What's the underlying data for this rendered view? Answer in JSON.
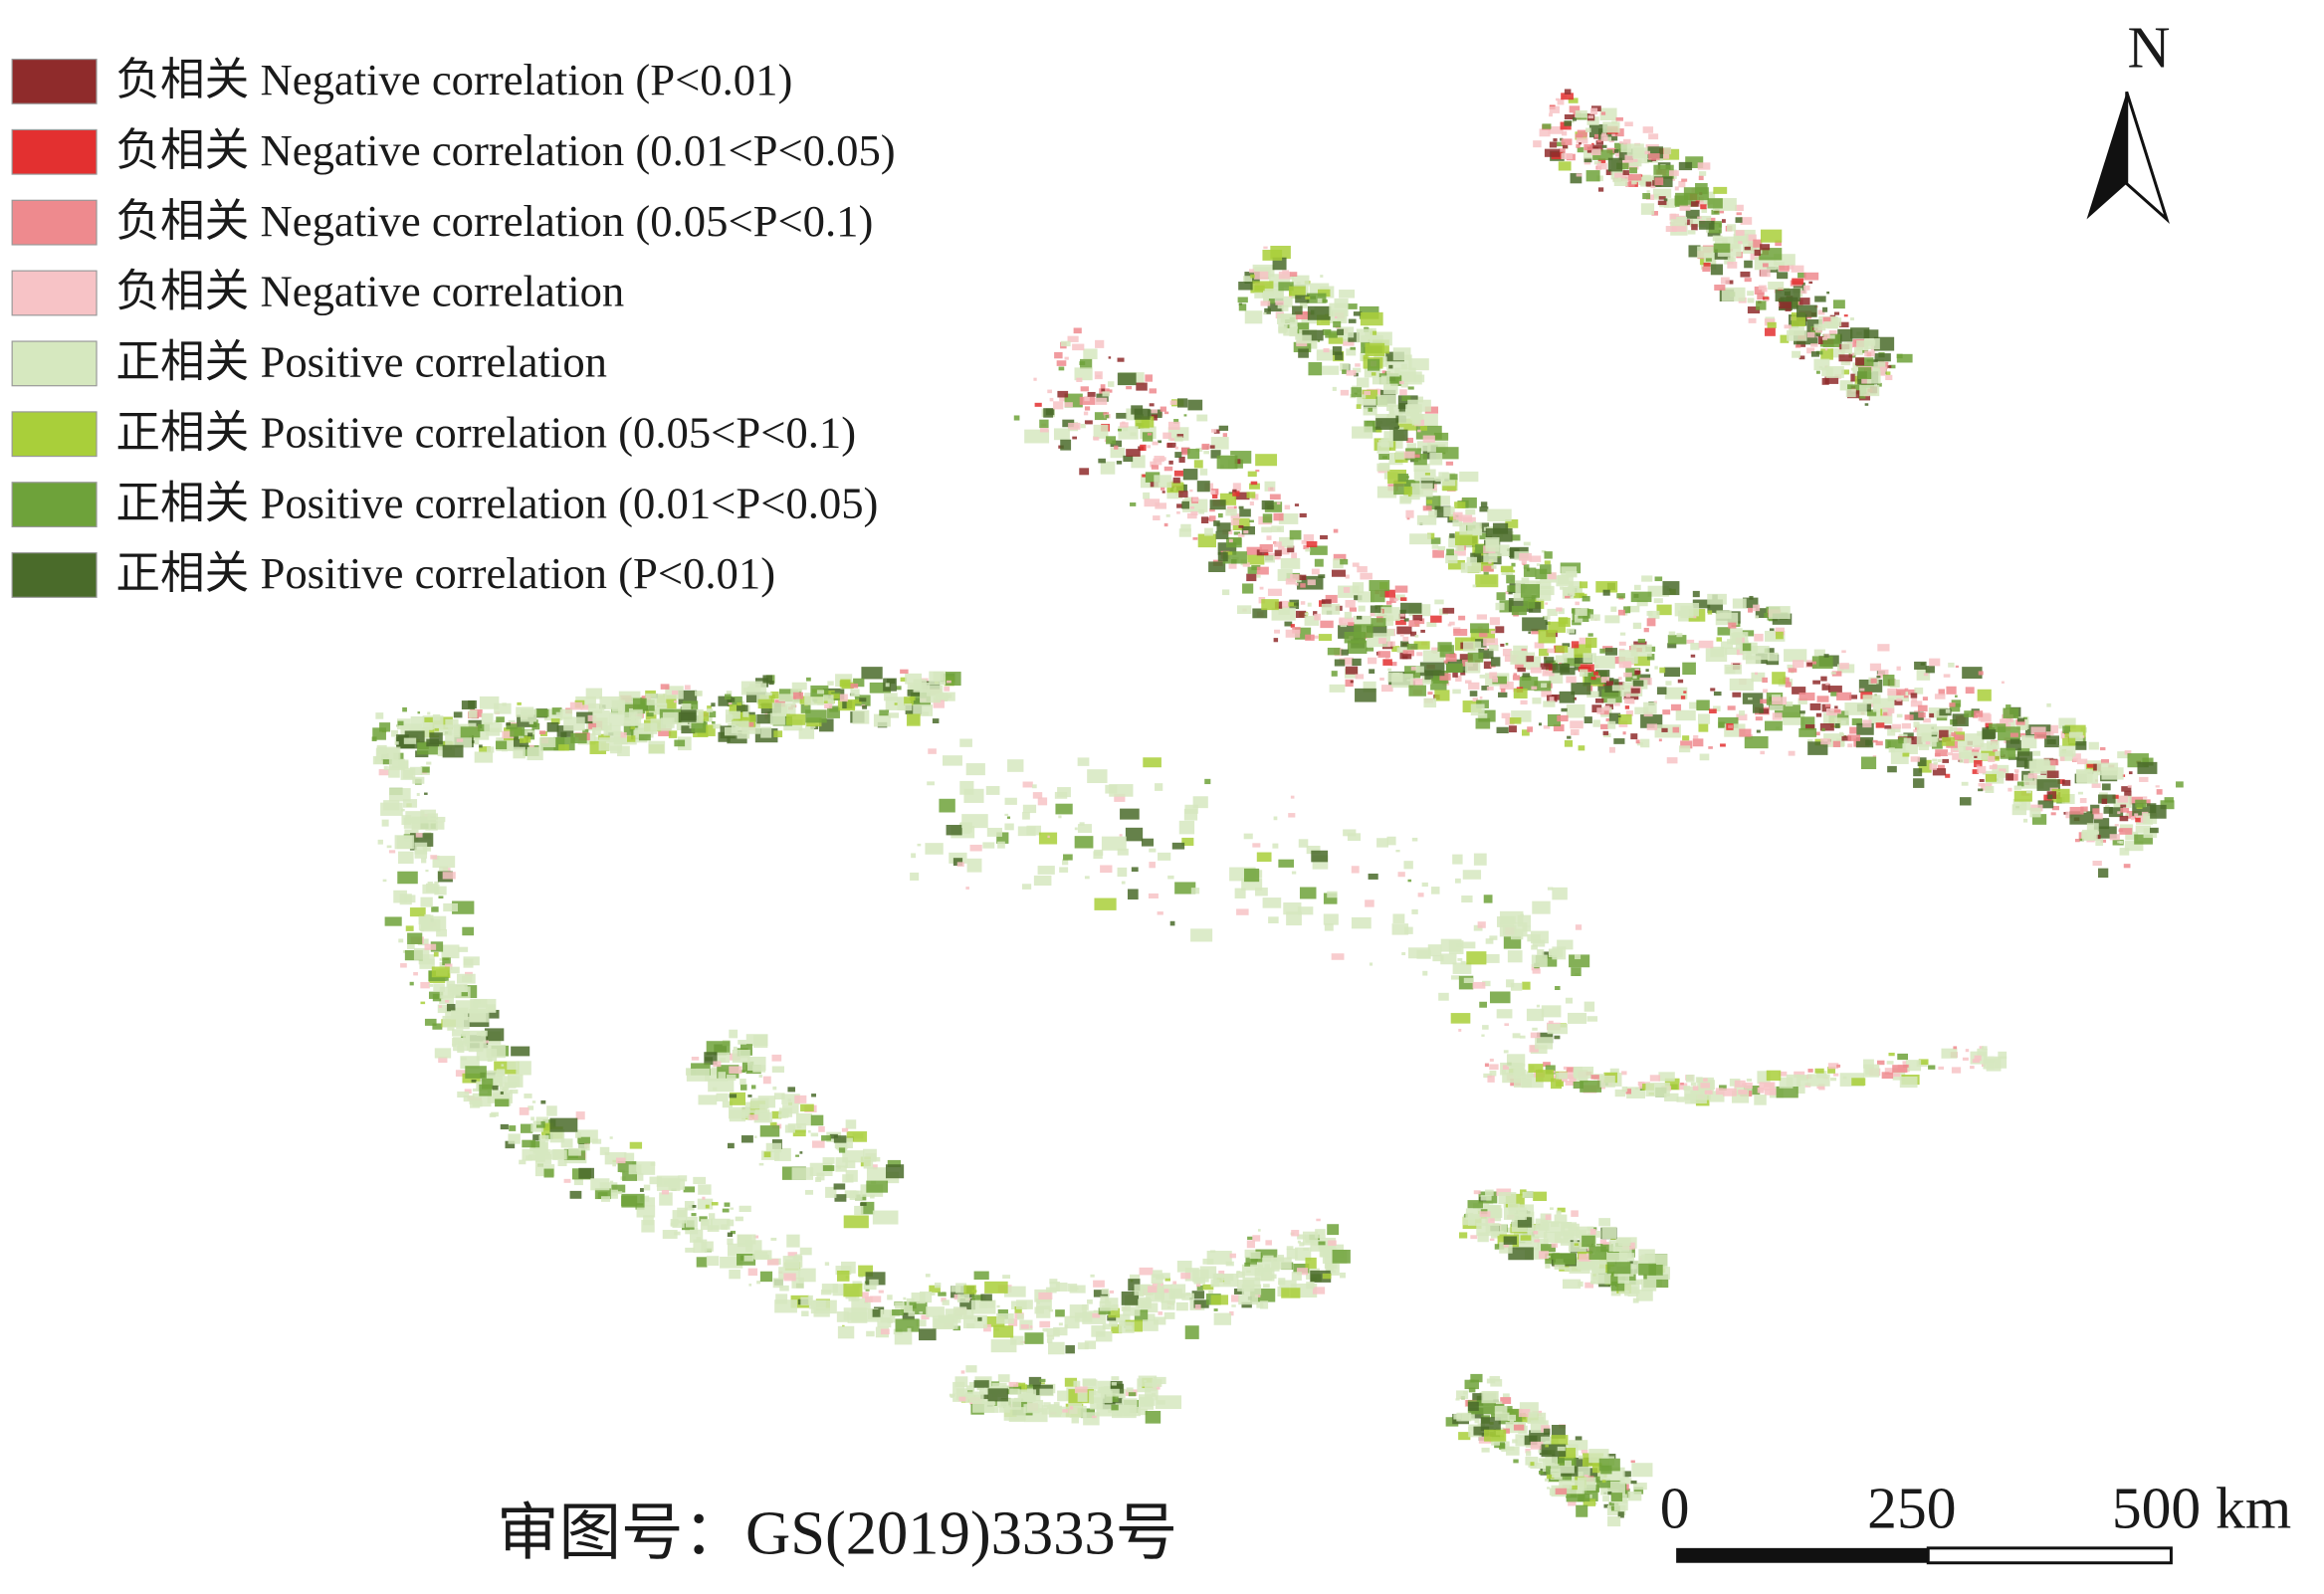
{
  "legend": {
    "items": [
      {
        "label": "负相关 Negative correlation (P<0.01)",
        "color": "#8f2b2b"
      },
      {
        "label": "负相关 Negative correlation (0.01<P<0.05)",
        "color": "#e33030"
      },
      {
        "label": "负相关 Negative correlation (0.05<P<0.1)",
        "color": "#ee8a8e"
      },
      {
        "label": "负相关 Negative correlation",
        "color": "#f7c3c6"
      },
      {
        "label": "正相关 Positive correlation",
        "color": "#d6e8bf"
      },
      {
        "label": "正相关 Positive correlation (0.05<P<0.1)",
        "color": "#a9cf3a"
      },
      {
        "label": "正相关 Positive correlation (0.01<P<0.05)",
        "color": "#6ea23a"
      },
      {
        "label": "正相关 Positive correlation (P<0.01)",
        "color": "#4a6b2a"
      }
    ]
  },
  "north_label": "N",
  "scale_bar": {
    "labels": [
      "0",
      "250",
      "500 km"
    ]
  },
  "approval_number": "审图号：GS(2019)3333号"
}
